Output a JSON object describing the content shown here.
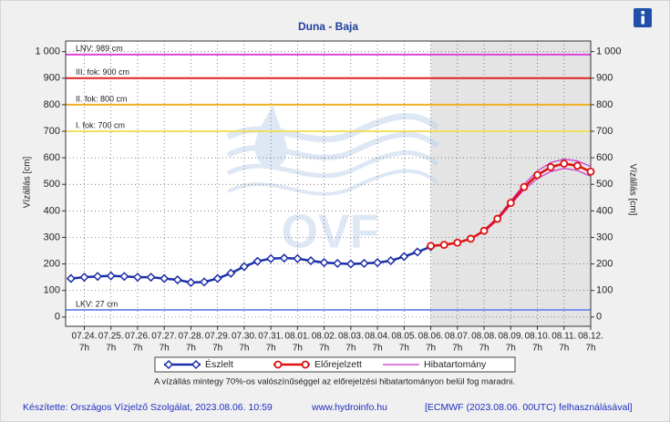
{
  "chart_data": {
    "type": "line",
    "title": "Duna - Baja",
    "ylabel": "Vízállás [cm]",
    "xlim": [
      -0.7,
      19
    ],
    "ylim": [
      -35,
      1040
    ],
    "xticks": [
      {
        "value": 0,
        "label": "07.24."
      },
      {
        "value": 1,
        "label": "07.25."
      },
      {
        "value": 2,
        "label": "07.26."
      },
      {
        "value": 3,
        "label": "07.27."
      },
      {
        "value": 4,
        "label": "07.28."
      },
      {
        "value": 5,
        "label": "07.29."
      },
      {
        "value": 6,
        "label": "07.30."
      },
      {
        "value": 7,
        "label": "07.31."
      },
      {
        "value": 8,
        "label": "08.01."
      },
      {
        "value": 9,
        "label": "08.02."
      },
      {
        "value": 10,
        "label": "08.03."
      },
      {
        "value": 11,
        "label": "08.04."
      },
      {
        "value": 12,
        "label": "08.05."
      },
      {
        "value": 13,
        "label": "08.06."
      },
      {
        "value": 14,
        "label": "08.07."
      },
      {
        "value": 15,
        "label": "08.08."
      },
      {
        "value": 16,
        "label": "08.09."
      },
      {
        "value": 17,
        "label": "08.10."
      },
      {
        "value": 18,
        "label": "08.11."
      },
      {
        "value": 19,
        "label": "08.12."
      }
    ],
    "xtick_hour": "7h",
    "yticks": [
      0,
      100,
      200,
      300,
      400,
      500,
      600,
      700,
      800,
      900,
      {
        "value": 1000,
        "label": "1 000"
      }
    ],
    "grid": true,
    "series": [
      {
        "name": "Észlelt",
        "color": "#1c2fa8",
        "marker": "diamond",
        "x": [
          -0.5,
          0,
          0.5,
          1,
          1.5,
          2,
          2.5,
          3,
          3.5,
          4,
          4.5,
          5,
          5.5,
          6,
          6.5,
          7,
          7.5,
          8,
          8.5,
          9,
          9.5,
          10,
          10.5,
          11,
          11.5,
          12,
          12.5,
          13
        ],
        "values": [
          145,
          150,
          153,
          155,
          153,
          150,
          150,
          145,
          140,
          130,
          132,
          145,
          165,
          190,
          210,
          220,
          222,
          220,
          212,
          205,
          202,
          200,
          202,
          205,
          212,
          228,
          245,
          265
        ]
      },
      {
        "name": "Előrejelzett",
        "color": "#e01010",
        "marker": "circle",
        "x": [
          13,
          13.5,
          14,
          14.5,
          15,
          15.5,
          16,
          16.5,
          17,
          17.5,
          18,
          18.5,
          19
        ],
        "values": [
          268,
          272,
          280,
          295,
          325,
          370,
          430,
          490,
          535,
          565,
          578,
          570,
          548
        ]
      }
    ],
    "error_band": {
      "name": "Hibatartomány",
      "color": "#cc33cc",
      "x": [
        13,
        13.5,
        14,
        14.5,
        15,
        15.5,
        16,
        16.5,
        17,
        17.5,
        18,
        18.5,
        19
      ],
      "upper": [
        null,
        null,
        null,
        null,
        328,
        375,
        437,
        500,
        550,
        582,
        595,
        588,
        568
      ],
      "lower": [
        null,
        null,
        null,
        null,
        320,
        365,
        423,
        480,
        522,
        548,
        560,
        552,
        530
      ]
    },
    "thresholds": [
      {
        "label": "LNV: 989 cm",
        "value": 989,
        "color": "#dd44dd"
      },
      {
        "label": "III. fok: 900 cm",
        "value": 900,
        "color": "#e02020"
      },
      {
        "label": "II. fok: 800 cm",
        "value": 800,
        "color": "#f0b020"
      },
      {
        "label": "I. fok: 700 cm",
        "value": 700,
        "color": "#f0e060"
      },
      {
        "label": "LKV: 27 cm",
        "value": 27,
        "color": "#8090f0"
      }
    ],
    "forecast_shading": "#e4e4e4",
    "watermark": "OVF",
    "note": "A vízállás mintegy 70%-os valószínűséggel az előrejelzési hibatartományon belül fog maradni.",
    "footer": {
      "author": "Készítette: Országos Vízjelző Szolgálat, 2023.08.06. 10:59",
      "site": "www.hydroinfo.hu",
      "source": "[ECMWF (2023.08.06. 00UTC) felhasználásával]"
    }
  }
}
